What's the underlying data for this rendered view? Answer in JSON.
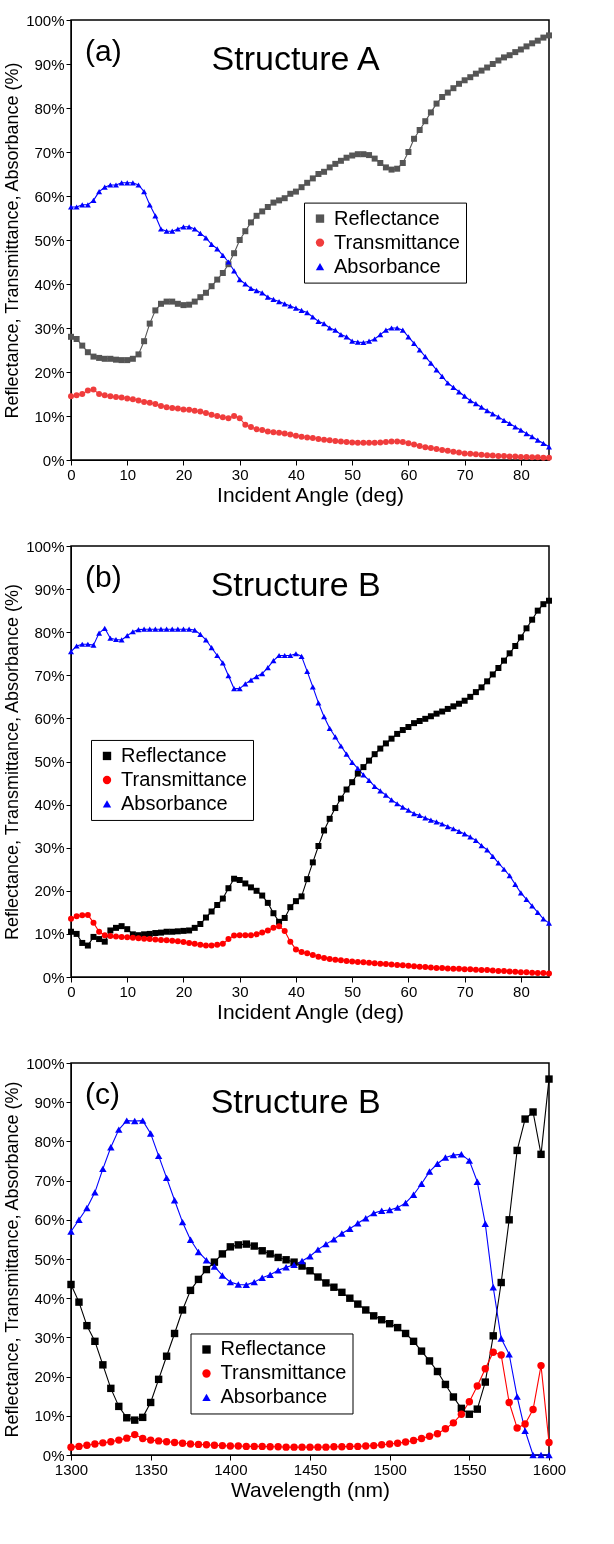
{
  "chart_data": [
    {
      "type": "line",
      "title": "Structure A",
      "annotations": [
        "(a)"
      ],
      "xlabel": "Incident Angle (deg)",
      "ylabel": "Reflectance, Transmittance, Absorbance (%)",
      "xlim": [
        0,
        85
      ],
      "ylim": [
        0,
        100
      ],
      "xticks": [
        0,
        10,
        20,
        30,
        40,
        50,
        60,
        70,
        80
      ],
      "yticks": [
        {
          "value": 0,
          "label": "0%"
        },
        {
          "value": 10,
          "label": "10%"
        },
        {
          "value": 20,
          "label": "20%"
        },
        {
          "value": 30,
          "label": "30%"
        },
        {
          "value": 40,
          "label": "40%"
        },
        {
          "value": 50,
          "label": "50%"
        },
        {
          "value": 60,
          "label": "60%"
        },
        {
          "value": 70,
          "label": "70%"
        },
        {
          "value": 80,
          "label": "80%"
        },
        {
          "value": 90,
          "label": "90%"
        },
        {
          "value": 100,
          "label": "100%"
        }
      ],
      "grid": false,
      "legend": "right",
      "line_style": "solid",
      "x": [
        0,
        1,
        2,
        3,
        4,
        5,
        6,
        7,
        8,
        9,
        10,
        11,
        12,
        13,
        14,
        15,
        16,
        17,
        18,
        19,
        20,
        21,
        22,
        23,
        24,
        25,
        26,
        27,
        28,
        29,
        30,
        31,
        32,
        33,
        34,
        35,
        36,
        37,
        38,
        39,
        40,
        41,
        42,
        43,
        44,
        45,
        46,
        47,
        48,
        49,
        50,
        51,
        52,
        53,
        54,
        55,
        56,
        57,
        58,
        59,
        60,
        61,
        62,
        63,
        64,
        65,
        66,
        67,
        68,
        69,
        70,
        71,
        72,
        73,
        74,
        75,
        76,
        77,
        78,
        79,
        80,
        81,
        82,
        83,
        84,
        85
      ],
      "series": [
        {
          "name": "Reflectance",
          "color": "#555555",
          "marker": "square",
          "values": [
            28,
            27.5,
            26,
            24.5,
            23.5,
            23.2,
            23,
            23,
            22.8,
            22.7,
            22.7,
            23,
            24,
            27,
            31,
            34,
            35.5,
            36,
            36,
            35.5,
            35.2,
            35.3,
            36,
            37,
            38,
            39.5,
            41,
            42.5,
            44.5,
            47,
            50,
            52,
            54,
            55.5,
            56.5,
            57.5,
            58.5,
            59,
            59.5,
            60.5,
            61,
            62,
            63,
            64,
            65,
            65.5,
            66.5,
            67.3,
            68,
            68.7,
            69.2,
            69.5,
            69.5,
            69.3,
            68.5,
            67.5,
            66.5,
            66,
            66.2,
            67.5,
            70,
            73,
            75,
            77,
            79,
            81,
            82.5,
            83.5,
            84.5,
            85.5,
            86.3,
            87,
            87.8,
            88.5,
            89.2,
            90,
            90.8,
            91.5,
            92,
            92.7,
            93.3,
            94,
            94.7,
            95.3,
            96,
            96.5
          ]
        },
        {
          "name": "Transmittance",
          "color": "#f03c3c",
          "marker": "circle",
          "values": [
            14.5,
            14.7,
            15,
            15.8,
            16,
            15,
            14.7,
            14.5,
            14.3,
            14.2,
            14,
            13.8,
            13.5,
            13.2,
            13,
            12.7,
            12.3,
            12,
            11.8,
            11.7,
            11.5,
            11.4,
            11.2,
            11,
            10.7,
            10.3,
            10,
            9.7,
            9.5,
            10,
            9.5,
            8,
            7.5,
            7,
            6.8,
            6.5,
            6.3,
            6.2,
            6,
            5.8,
            5.5,
            5.3,
            5.1,
            5,
            4.8,
            4.6,
            4.5,
            4.3,
            4.2,
            4.1,
            4,
            3.9,
            3.9,
            3.9,
            3.9,
            4,
            4.1,
            4.2,
            4.2,
            4.1,
            3.8,
            3.5,
            3.2,
            2.9,
            2.7,
            2.5,
            2.3,
            2.1,
            1.9,
            1.7,
            1.5,
            1.4,
            1.3,
            1.2,
            1.1,
            1,
            0.9,
            0.9,
            0.8,
            0.8,
            0.7,
            0.7,
            0.6,
            0.6,
            0.5,
            0.5
          ]
        },
        {
          "name": "Absorbance",
          "color": "#0000ff",
          "marker": "triangle",
          "values": [
            57.5,
            57.5,
            58,
            58,
            59,
            61,
            62,
            62.5,
            62.5,
            63,
            63,
            63,
            62.5,
            61,
            58,
            55.5,
            52.5,
            52,
            52,
            52.5,
            53,
            53,
            52.5,
            51.5,
            50.5,
            49,
            48,
            46.5,
            45,
            43,
            41,
            40,
            39,
            38.5,
            38,
            37,
            36.5,
            36,
            35.5,
            35,
            34.5,
            34,
            33.5,
            32.5,
            31.5,
            31,
            30,
            29.5,
            28.5,
            28,
            27,
            26.8,
            26.7,
            27,
            27.5,
            28.5,
            29.5,
            30,
            30,
            29.5,
            28,
            26.5,
            25,
            23.5,
            22,
            20.5,
            19,
            17.5,
            16.5,
            15.5,
            14.5,
            13.5,
            12.8,
            12,
            11.2,
            10.5,
            9.8,
            9,
            8.3,
            7.5,
            6.8,
            6,
            5.3,
            4.5,
            3.8,
            3
          ]
        }
      ]
    },
    {
      "type": "line",
      "title": "Structure B",
      "annotations": [
        "(b)"
      ],
      "xlabel": "Incident Angle (deg)",
      "ylabel": "Reflectance, Transmittance, Absorbance (%)",
      "xlim": [
        0,
        85
      ],
      "ylim": [
        0,
        100
      ],
      "xticks": [
        0,
        10,
        20,
        30,
        40,
        50,
        60,
        70,
        80
      ],
      "yticks": [
        {
          "value": 0,
          "label": "0%"
        },
        {
          "value": 10,
          "label": "10%"
        },
        {
          "value": 20,
          "label": "20%"
        },
        {
          "value": 30,
          "label": "30%"
        },
        {
          "value": 40,
          "label": "40%"
        },
        {
          "value": 50,
          "label": "50%"
        },
        {
          "value": 60,
          "label": "60%"
        },
        {
          "value": 70,
          "label": "70%"
        },
        {
          "value": 80,
          "label": "80%"
        },
        {
          "value": 90,
          "label": "90%"
        },
        {
          "value": 100,
          "label": "100%"
        }
      ],
      "grid": false,
      "legend": "left",
      "line_style": "solid",
      "x": [
        0,
        1,
        2,
        3,
        4,
        5,
        6,
        7,
        8,
        9,
        10,
        11,
        12,
        13,
        14,
        15,
        16,
        17,
        18,
        19,
        20,
        21,
        22,
        23,
        24,
        25,
        26,
        27,
        28,
        29,
        30,
        31,
        32,
        33,
        34,
        35,
        36,
        37,
        38,
        39,
        40,
        41,
        42,
        43,
        44,
        45,
        46,
        47,
        48,
        49,
        50,
        51,
        52,
        53,
        54,
        55,
        56,
        57,
        58,
        59,
        60,
        61,
        62,
        63,
        64,
        65,
        66,
        67,
        68,
        69,
        70,
        71,
        72,
        73,
        74,
        75,
        76,
        77,
        78,
        79,
        80,
        81,
        82,
        83,
        84,
        85
      ],
      "series": [
        {
          "name": "Reflectance",
          "color": "#000000",
          "marker": "square",
          "values": [
            10.5,
            10,
            7.9,
            7.3,
            9.3,
            8.8,
            8.2,
            10.8,
            11.4,
            11.8,
            11.1,
            9.9,
            9.7,
            9.9,
            10,
            10.2,
            10.3,
            10.5,
            10.5,
            10.6,
            10.7,
            10.8,
            11.4,
            12.3,
            13.8,
            15.2,
            16.7,
            18.2,
            20.6,
            22.8,
            22.5,
            21.7,
            20.8,
            20,
            18.9,
            17.2,
            14.8,
            12.8,
            13.7,
            16.2,
            17.6,
            18.7,
            22.7,
            26.6,
            30.4,
            34,
            36.7,
            39.2,
            41.4,
            43.5,
            45.2,
            47.2,
            48.7,
            50.2,
            51.7,
            53,
            54.2,
            55.3,
            56.4,
            57.3,
            58,
            58.9,
            59.4,
            59.9,
            60.5,
            61.1,
            61.6,
            62.2,
            62.8,
            63.4,
            64.1,
            65,
            66.1,
            67.2,
            68.6,
            70.2,
            71.7,
            73.4,
            75.1,
            76.8,
            78.8,
            80.9,
            82.9,
            85,
            86.5,
            87.3
          ]
        },
        {
          "name": "Transmittance",
          "color": "#ff0000",
          "marker": "circle",
          "values": [
            13.5,
            14.1,
            14.3,
            14.4,
            12.6,
            10.5,
            9.7,
            9.5,
            9.4,
            9.3,
            9.2,
            9.1,
            9,
            8.9,
            8.8,
            8.7,
            8.6,
            8.5,
            8.4,
            8.3,
            8.1,
            7.9,
            7.7,
            7.5,
            7.3,
            7.3,
            7.5,
            7.7,
            8.8,
            9.6,
            9.7,
            9.7,
            9.7,
            9.9,
            10.3,
            10.8,
            11.4,
            11.8,
            10.7,
            8.2,
            6.4,
            5.8,
            5.5,
            5.1,
            4.7,
            4.4,
            4.2,
            4,
            3.9,
            3.7,
            3.6,
            3.5,
            3.4,
            3.3,
            3.2,
            3.1,
            3,
            2.9,
            2.8,
            2.7,
            2.6,
            2.5,
            2.4,
            2.3,
            2.2,
            2.1,
            2.1,
            2,
            1.9,
            1.9,
            1.8,
            1.8,
            1.7,
            1.6,
            1.6,
            1.5,
            1.4,
            1.4,
            1.3,
            1.2,
            1.1,
            1.1,
            1,
            0.9,
            0.9,
            0.8
          ]
        },
        {
          "name": "Absorbance",
          "color": "#0000ff",
          "marker": "triangle",
          "values": [
            75.5,
            76.8,
            77.2,
            77.2,
            77,
            79.8,
            80.9,
            78.6,
            78.3,
            78.2,
            79.2,
            80.1,
            80.6,
            80.7,
            80.7,
            80.7,
            80.7,
            80.7,
            80.7,
            80.7,
            80.7,
            80.7,
            80.5,
            79.5,
            78.2,
            76.4,
            74.6,
            72.9,
            69.9,
            66.9,
            66.9,
            68,
            68.9,
            69.7,
            70.4,
            71.8,
            73.4,
            74.6,
            74.6,
            74.6,
            75,
            74.4,
            70.9,
            67.3,
            63.6,
            60.4,
            57.7,
            55.7,
            53.6,
            51.7,
            49.8,
            48.4,
            46.9,
            45.6,
            44.2,
            43.2,
            42.2,
            41.1,
            40.2,
            39.4,
            38.7,
            37.9,
            37.5,
            36.9,
            36.4,
            36,
            35.5,
            34.9,
            34.4,
            33.8,
            33.2,
            32.5,
            31.7,
            30.5,
            29.5,
            28,
            26.5,
            25,
            23.5,
            21.5,
            19.5,
            18,
            16.5,
            15,
            13.5,
            12.5
          ]
        }
      ]
    },
    {
      "type": "line",
      "title": "Structure B",
      "annotations": [
        "(c)"
      ],
      "xlabel": "Wavelength (nm)",
      "ylabel": "Reflectance, Transmittance, Absorbance (%)",
      "xlim": [
        1300,
        1600
      ],
      "ylim": [
        0,
        100
      ],
      "xticks": [
        1300,
        1350,
        1400,
        1450,
        1500,
        1550,
        1600
      ],
      "yticks": [
        {
          "value": 0,
          "label": "0%"
        },
        {
          "value": 10,
          "label": "10%"
        },
        {
          "value": 20,
          "label": "20%"
        },
        {
          "value": 30,
          "label": "30%"
        },
        {
          "value": 40,
          "label": "40%"
        },
        {
          "value": 50,
          "label": "50%"
        },
        {
          "value": 60,
          "label": "60%"
        },
        {
          "value": 70,
          "label": "70%"
        },
        {
          "value": 80,
          "label": "80%"
        },
        {
          "value": 90,
          "label": "90%"
        },
        {
          "value": 100,
          "label": "100%"
        }
      ],
      "grid": false,
      "legend": "bottom",
      "line_style": "solid",
      "x": [
        1300,
        1305,
        1310,
        1315,
        1320,
        1325,
        1330,
        1335,
        1340,
        1345,
        1350,
        1355,
        1360,
        1365,
        1370,
        1375,
        1380,
        1385,
        1390,
        1395,
        1400,
        1405,
        1410,
        1415,
        1420,
        1425,
        1430,
        1435,
        1440,
        1445,
        1450,
        1455,
        1460,
        1465,
        1470,
        1475,
        1480,
        1485,
        1490,
        1495,
        1500,
        1505,
        1510,
        1515,
        1520,
        1525,
        1530,
        1535,
        1540,
        1545,
        1550,
        1555,
        1560,
        1565,
        1570,
        1575,
        1580,
        1585,
        1590,
        1595,
        1600
      ],
      "series": [
        {
          "name": "Reflectance",
          "color": "#000000",
          "marker": "square",
          "values": [
            43.5,
            39,
            33,
            29,
            23,
            17,
            12.4,
            9.5,
            8.9,
            9.6,
            13.4,
            19.3,
            25.2,
            31,
            37,
            42,
            44.8,
            47.3,
            49.2,
            51.3,
            53.1,
            53.6,
            53.8,
            53.3,
            52.1,
            51.3,
            50.4,
            49.8,
            49.2,
            48.2,
            47,
            45.4,
            43.9,
            42.8,
            41.5,
            40,
            38.5,
            37,
            35.5,
            34.5,
            33.5,
            32.5,
            31,
            29,
            26.5,
            24,
            21.3,
            18,
            14.8,
            11.9,
            10.4,
            11.7,
            18.6,
            30.4,
            44,
            60,
            77.7,
            85.7,
            87.5,
            76.7,
            95.9
          ]
        },
        {
          "name": "Transmittance",
          "color": "#ff0000",
          "marker": "circle",
          "values": [
            2,
            2.2,
            2.5,
            2.8,
            3.1,
            3.4,
            3.8,
            4.3,
            5.2,
            4.2,
            3.8,
            3.6,
            3.4,
            3.2,
            3,
            2.8,
            2.7,
            2.6,
            2.5,
            2.4,
            2.3,
            2.3,
            2.2,
            2.2,
            2.2,
            2.1,
            2.1,
            2,
            2,
            2,
            2,
            2,
            2,
            2.1,
            2.1,
            2.2,
            2.2,
            2.3,
            2.4,
            2.6,
            2.8,
            3,
            3.3,
            3.7,
            4.2,
            4.8,
            5.4,
            6.7,
            8.2,
            10.4,
            13.6,
            17.6,
            22,
            26.2,
            25.5,
            13.4,
            6.9,
            7.9,
            11.6,
            22.8,
            3.2
          ]
        },
        {
          "name": "Absorbance",
          "color": "#0000ff",
          "marker": "triangle",
          "values": [
            57,
            60,
            63,
            67,
            73,
            78.5,
            83,
            85.3,
            85.2,
            85.3,
            82,
            76.3,
            70.7,
            65,
            59.4,
            54.9,
            51.8,
            49.7,
            48.1,
            45.8,
            44.1,
            43.5,
            43.4,
            44.1,
            45.2,
            46,
            47.1,
            47.9,
            48.5,
            49.5,
            50.7,
            52.4,
            53.8,
            55,
            56.5,
            57.7,
            59.1,
            60.4,
            61.7,
            62.3,
            62.5,
            63.1,
            64.3,
            66.4,
            69.2,
            72.3,
            74.3,
            75.9,
            76.5,
            76.7,
            75.1,
            69.7,
            59,
            42.8,
            29.7,
            25.7,
            14.9,
            6.2,
            0,
            0,
            0
          ]
        }
      ]
    }
  ]
}
